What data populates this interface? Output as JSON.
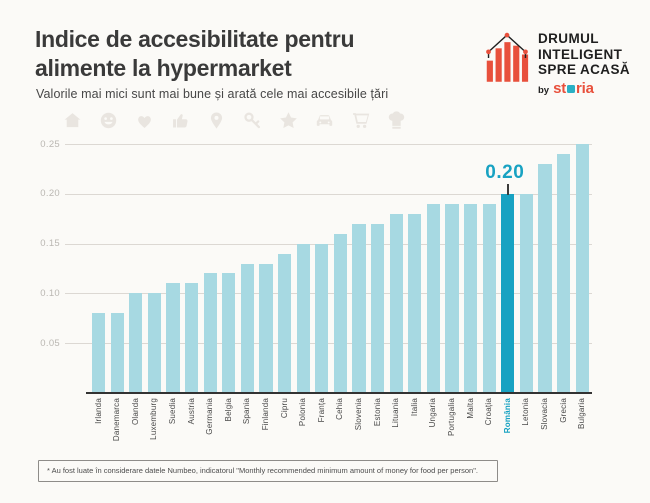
{
  "header": {
    "title_line1": "Indice de accesibilitate pentru",
    "title_line2": "alimente la hypermarket",
    "subtitle": "Valorile mai mici sunt mai bune și arată cele mai accesibile țări"
  },
  "logo": {
    "line1": "DRUMUL",
    "line2": "INTELIGENT",
    "line3": "SPRE ACASĂ",
    "by": "by",
    "brand": "storia",
    "brand_st": "st",
    "brand_ria": "ria"
  },
  "watermark_icons": [
    "house-icon",
    "smiley-icon",
    "heart-icon",
    "thumbs-up-icon",
    "location-pin-icon",
    "key-icon",
    "star-icon",
    "car-icon",
    "shopping-cart-icon",
    "chef-hat-icon"
  ],
  "chart_data": {
    "type": "bar",
    "title": "Indice de accesibilitate pentru alimente la hypermarket",
    "categories": [
      "Irlanda",
      "Danemarca",
      "Olanda",
      "Luxemburg",
      "Suedia",
      "Austria",
      "Germania",
      "Belgia",
      "Spania",
      "Finlanda",
      "Cipru",
      "Polonia",
      "Franța",
      "Cehia",
      "Slovenia",
      "Estonia",
      "Lituania",
      "Italia",
      "Ungaria",
      "Portugalia",
      "Malta",
      "Croația",
      "România",
      "Letonia",
      "Slovacia",
      "Grecia",
      "Bulgaria"
    ],
    "values": [
      0.08,
      0.08,
      0.1,
      0.1,
      0.11,
      0.11,
      0.12,
      0.12,
      0.13,
      0.13,
      0.14,
      0.15,
      0.15,
      0.16,
      0.17,
      0.17,
      0.18,
      0.18,
      0.19,
      0.19,
      0.19,
      0.19,
      0.2,
      0.2,
      0.23,
      0.24,
      0.25
    ],
    "highlight_category": "România",
    "highlight_value_label": "0.20",
    "yticks": [
      {
        "label": "0.25",
        "value": 0.25
      },
      {
        "label": "0.20",
        "value": 0.2
      },
      {
        "label": "0.15",
        "value": 0.15
      },
      {
        "label": "0.10",
        "value": 0.1
      },
      {
        "label": "0.05",
        "value": 0.05
      }
    ],
    "ylim": [
      0,
      0.25
    ],
    "grid": true,
    "legend": false
  },
  "footnote": "* Au fost luate în considerare datele Numbeo, indicatorul \"Monthly recommended minimum amount of money for food per person\".",
  "colors": {
    "background": "#fbfaf7",
    "accent_red": "#e8503c",
    "highlight_teal": "#18a2c2",
    "bar_light": "#a7d9e2",
    "watermark_gray": "#e9e5e0",
    "storia_o_teal": "#2ab0c5"
  }
}
